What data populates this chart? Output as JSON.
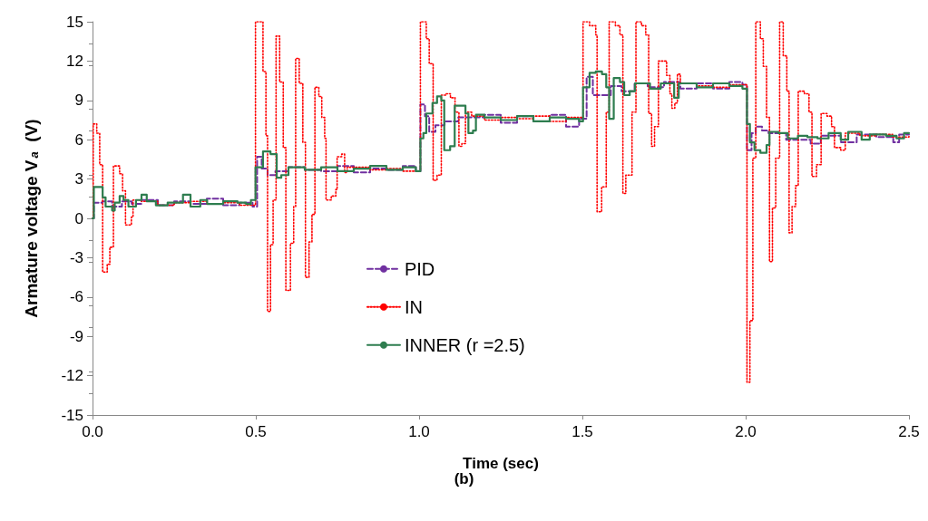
{
  "chart_data": {
    "type": "step",
    "xlabel": "Time (sec)",
    "ylabel": "Armature voltage V$_{a}$  (V)",
    "annotations": [
      "(b)"
    ],
    "xlim": [
      0,
      2.5
    ],
    "xticks": [
      {
        "value": 0,
        "label": "0.0"
      },
      {
        "value": 0.5,
        "label": "0.5"
      },
      {
        "value": 1,
        "label": "1.0"
      },
      {
        "value": 1.5,
        "label": "1.5"
      },
      {
        "value": 2,
        "label": "2.0"
      },
      {
        "value": 2.5,
        "label": "2.5"
      }
    ],
    "ylim": [
      -15,
      15
    ],
    "yticks": [
      -15,
      -12,
      -9,
      -6,
      -3,
      0,
      3,
      6,
      9,
      12,
      15
    ],
    "grid": false,
    "legend": "center",
    "marker": "none",
    "series": [
      {
        "name": "PID",
        "color": "#7030a0",
        "line_style": "dashed",
        "x": [
          0,
          0.004,
          0.03,
          0.06,
          0.09,
          0.12,
          0.15,
          0.2,
          0.25,
          0.3,
          0.35,
          0.4,
          0.45,
          0.49,
          0.504,
          0.518,
          0.536,
          0.56,
          0.6,
          0.65,
          0.7,
          0.75,
          0.8,
          0.85,
          0.9,
          0.95,
          0.99,
          1.004,
          1.018,
          1.031,
          1.05,
          1.078,
          1.12,
          1.2,
          1.25,
          1.3,
          1.35,
          1.4,
          1.45,
          1.49,
          1.513,
          1.532,
          1.56,
          1.587,
          1.62,
          1.66,
          1.7,
          1.75,
          1.8,
          1.85,
          1.9,
          1.95,
          1.99,
          2.004,
          2.018,
          2.031,
          2.05,
          2.07,
          2.124,
          2.199,
          2.23,
          2.292,
          2.34,
          2.4,
          2.452,
          2.47,
          2.5
        ],
        "values": [
          0,
          1.2,
          1.3,
          0.9,
          1.3,
          1.1,
          1.4,
          1.0,
          1.3,
          1.1,
          1.5,
          1.0,
          1.2,
          0.9,
          4.7,
          3.8,
          3.3,
          3.6,
          3.9,
          3.7,
          3.6,
          4.0,
          3.5,
          3.8,
          3.7,
          4.0,
          3.6,
          8.7,
          7.8,
          6.6,
          7.1,
          7.4,
          7.7,
          7.9,
          7.3,
          7.8,
          7.4,
          7.9,
          7.0,
          7.6,
          10.8,
          9.4,
          9.4,
          10.1,
          9.7,
          10.3,
          10.0,
          10.4,
          9.9,
          10.3,
          9.9,
          10.4,
          10.2,
          5.2,
          6.5,
          7.0,
          6.7,
          6.5,
          6.0,
          5.7,
          6.3,
          5.8,
          6.4,
          6.2,
          5.8,
          6.4,
          6.4
        ]
      },
      {
        "name": "IN",
        "color": "#ff0000",
        "line_style": "dotted",
        "x": [
          0,
          0.002,
          0.013,
          0.022,
          0.031,
          0.045,
          0.053,
          0.064,
          0.083,
          0.092,
          0.101,
          0.119,
          0.124,
          0.15,
          0.2,
          0.25,
          0.3,
          0.35,
          0.4,
          0.45,
          0.499,
          0.513,
          0.522,
          0.531,
          0.536,
          0.545,
          0.553,
          0.562,
          0.573,
          0.584,
          0.592,
          0.606,
          0.616,
          0.622,
          0.633,
          0.644,
          0.652,
          0.663,
          0.672,
          0.681,
          0.693,
          0.702,
          0.711,
          0.715,
          0.731,
          0.745,
          0.749,
          0.763,
          0.772,
          0.78,
          0.85,
          0.9,
          0.95,
          1.004,
          1.022,
          1.031,
          1.043,
          1.055,
          1.068,
          1.082,
          1.096,
          1.11,
          1.122,
          1.131,
          1.142,
          1.161,
          1.2,
          1.25,
          1.3,
          1.35,
          1.4,
          1.45,
          1.502,
          1.522,
          1.541,
          1.545,
          1.559,
          1.573,
          1.582,
          1.601,
          1.615,
          1.624,
          1.633,
          1.652,
          1.664,
          1.681,
          1.694,
          1.703,
          1.712,
          1.721,
          1.733,
          1.749,
          1.758,
          1.768,
          1.774,
          1.783,
          1.791,
          1.8,
          1.85,
          1.9,
          1.95,
          2.004,
          2.013,
          2.022,
          2.031,
          2.045,
          2.054,
          2.064,
          2.073,
          2.082,
          2.092,
          2.104,
          2.115,
          2.126,
          2.133,
          2.142,
          2.153,
          2.161,
          2.18,
          2.194,
          2.203,
          2.217,
          2.231,
          2.249,
          2.263,
          2.272,
          2.291,
          2.305,
          2.35,
          2.4,
          2.45,
          2.5
        ],
        "values": [
          0,
          7.2,
          6.5,
          4.1,
          -4.1,
          -3.5,
          -2.2,
          4.0,
          3.4,
          2.1,
          -0.5,
          0.1,
          1.4,
          1.3,
          1.0,
          1.2,
          1.3,
          1.1,
          1.2,
          1.0,
          15,
          15,
          11.2,
          6.3,
          -7.1,
          -2.0,
          1.4,
          13.9,
          10.4,
          5.4,
          -5.5,
          -1.9,
          0.9,
          12.2,
          10.3,
          5.8,
          -4.5,
          -1.8,
          0.3,
          10.0,
          9.3,
          7.7,
          6.1,
          1.4,
          1.7,
          2.2,
          4.7,
          4.9,
          3.5,
          3.9,
          3.7,
          3.8,
          3.6,
          15,
          13.7,
          11.8,
          2.9,
          3.3,
          9.4,
          9.5,
          9.2,
          8.1,
          5.5,
          5.7,
          8.1,
          7.8,
          7.5,
          7.7,
          7.6,
          7.8,
          7.4,
          7.7,
          15,
          14.7,
          14.0,
          0.5,
          2.4,
          8.1,
          15,
          14.7,
          14.0,
          1.9,
          3.3,
          8.1,
          15,
          14.7,
          14.0,
          8.0,
          5.5,
          7.0,
          12.0,
          12.0,
          10.9,
          9.5,
          8.4,
          8.8,
          11.0,
          10.3,
          10.1,
          10.0,
          10.2,
          -12.5,
          -7.8,
          4.6,
          15,
          13.7,
          11.6,
          7.7,
          -3.3,
          0.8,
          4.6,
          15,
          12.4,
          9.7,
          -1.1,
          0.9,
          2.5,
          9.7,
          9.5,
          8.1,
          3.2,
          4.1,
          8.0,
          7.8,
          7.0,
          5.4,
          5.2,
          6.5,
          6.3,
          6.4,
          6.2,
          6.3
        ]
      },
      {
        "name": "INNER (r =2.5)",
        "color": "#2e7d4f",
        "line_style": "solid",
        "x": [
          0,
          0.004,
          0.031,
          0.04,
          0.06,
          0.068,
          0.083,
          0.095,
          0.11,
          0.133,
          0.15,
          0.166,
          0.194,
          0.23,
          0.277,
          0.3,
          0.33,
          0.351,
          0.4,
          0.444,
          0.47,
          0.485,
          0.499,
          0.522,
          0.545,
          0.564,
          0.578,
          0.6,
          0.65,
          0.7,
          0.75,
          0.8,
          0.85,
          0.9,
          0.95,
          0.99,
          1.004,
          1.013,
          1.022,
          1.041,
          1.055,
          1.068,
          1.077,
          1.095,
          1.109,
          1.13,
          1.142,
          1.151,
          1.165,
          1.174,
          1.2,
          1.25,
          1.3,
          1.35,
          1.4,
          1.45,
          1.49,
          1.502,
          1.522,
          1.541,
          1.56,
          1.573,
          1.582,
          1.596,
          1.615,
          1.628,
          1.645,
          1.661,
          1.707,
          1.74,
          1.77,
          1.781,
          1.795,
          1.85,
          1.9,
          1.95,
          1.99,
          2.004,
          2.013,
          2.027,
          2.045,
          2.064,
          2.073,
          2.1,
          2.129,
          2.16,
          2.189,
          2.22,
          2.254,
          2.291,
          2.314,
          2.355,
          2.38,
          2.43,
          2.462,
          2.485,
          2.5
        ],
        "values": [
          0,
          2.4,
          1.6,
          0.9,
          0.6,
          1.2,
          1.7,
          1.4,
          0.9,
          1.4,
          1.8,
          1.3,
          1.0,
          1.2,
          1.8,
          0.9,
          1.4,
          1.1,
          1.3,
          1.2,
          1.1,
          1.4,
          3.9,
          5.1,
          4.9,
          3.1,
          3.3,
          3.9,
          3.7,
          3.9,
          3.6,
          3.8,
          4.0,
          3.7,
          3.9,
          3.6,
          6.1,
          6.5,
          8.0,
          8.8,
          9.3,
          9.0,
          5.2,
          5.5,
          8.6,
          8.6,
          8.0,
          6.5,
          6.7,
          7.9,
          7.7,
          7.5,
          7.8,
          7.4,
          7.7,
          7.6,
          7.4,
          10.0,
          11.1,
          11.2,
          11.0,
          10.0,
          7.6,
          10.7,
          10.4,
          9.4,
          9.7,
          10.3,
          9.9,
          10.3,
          10.3,
          9.2,
          10.3,
          10.0,
          10.3,
          10.1,
          9.9,
          7.2,
          5.8,
          5.2,
          5.0,
          5.6,
          6.6,
          6.5,
          6.1,
          6.3,
          6.2,
          6.1,
          6.5,
          6.0,
          6.6,
          6.0,
          6.4,
          6.3,
          6.1,
          6.5,
          6.5
        ]
      }
    ]
  }
}
